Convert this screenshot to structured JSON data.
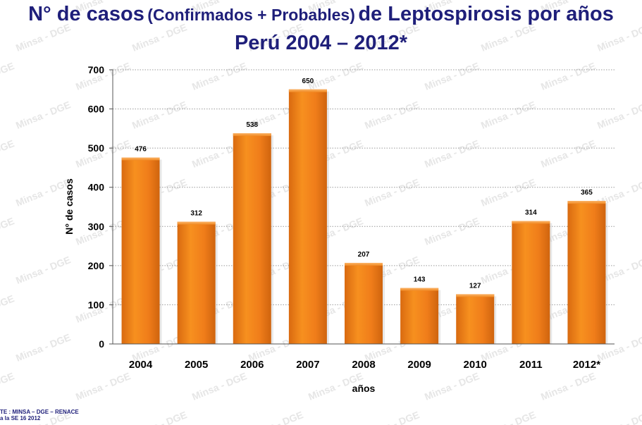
{
  "watermark_text": "Minsa - DGE",
  "title": {
    "part1": "N° de casos",
    "part2": "(Confirmados + Probables)",
    "part3": "de Leptospirosis por años",
    "line2": "Perú 2004 – 2012*"
  },
  "footer": {
    "line1": "TE : MINSA – DGE – RENACE",
    "line2": "a la SE 16 2012"
  },
  "colors": {
    "title": "#1f1f7a",
    "bar": "#f07d1a",
    "bar_highlight": "#f9a54c",
    "bar_shadow": "#c85e0c"
  },
  "chart_data": {
    "type": "bar",
    "categories": [
      "2004",
      "2005",
      "2006",
      "2007",
      "2008",
      "2009",
      "2010",
      "2011",
      "2012*"
    ],
    "values": [
      476,
      312,
      538,
      650,
      207,
      143,
      127,
      314,
      365
    ],
    "data_labels": [
      "476",
      "312",
      "538",
      "650",
      "207",
      "143",
      "127",
      "314",
      "365"
    ],
    "title": "N° de casos (Confirmados + Probables) de Leptospirosis por años Perú 2004 – 2012*",
    "xlabel": "años",
    "ylabel": "N° de casos",
    "ylim": [
      0,
      700
    ],
    "yticks": [
      0,
      100,
      200,
      300,
      400,
      500,
      600,
      700
    ],
    "ytick_labels": [
      "0",
      "100",
      "200",
      "300",
      "400",
      "500",
      "600",
      "700"
    ],
    "grid": true
  }
}
